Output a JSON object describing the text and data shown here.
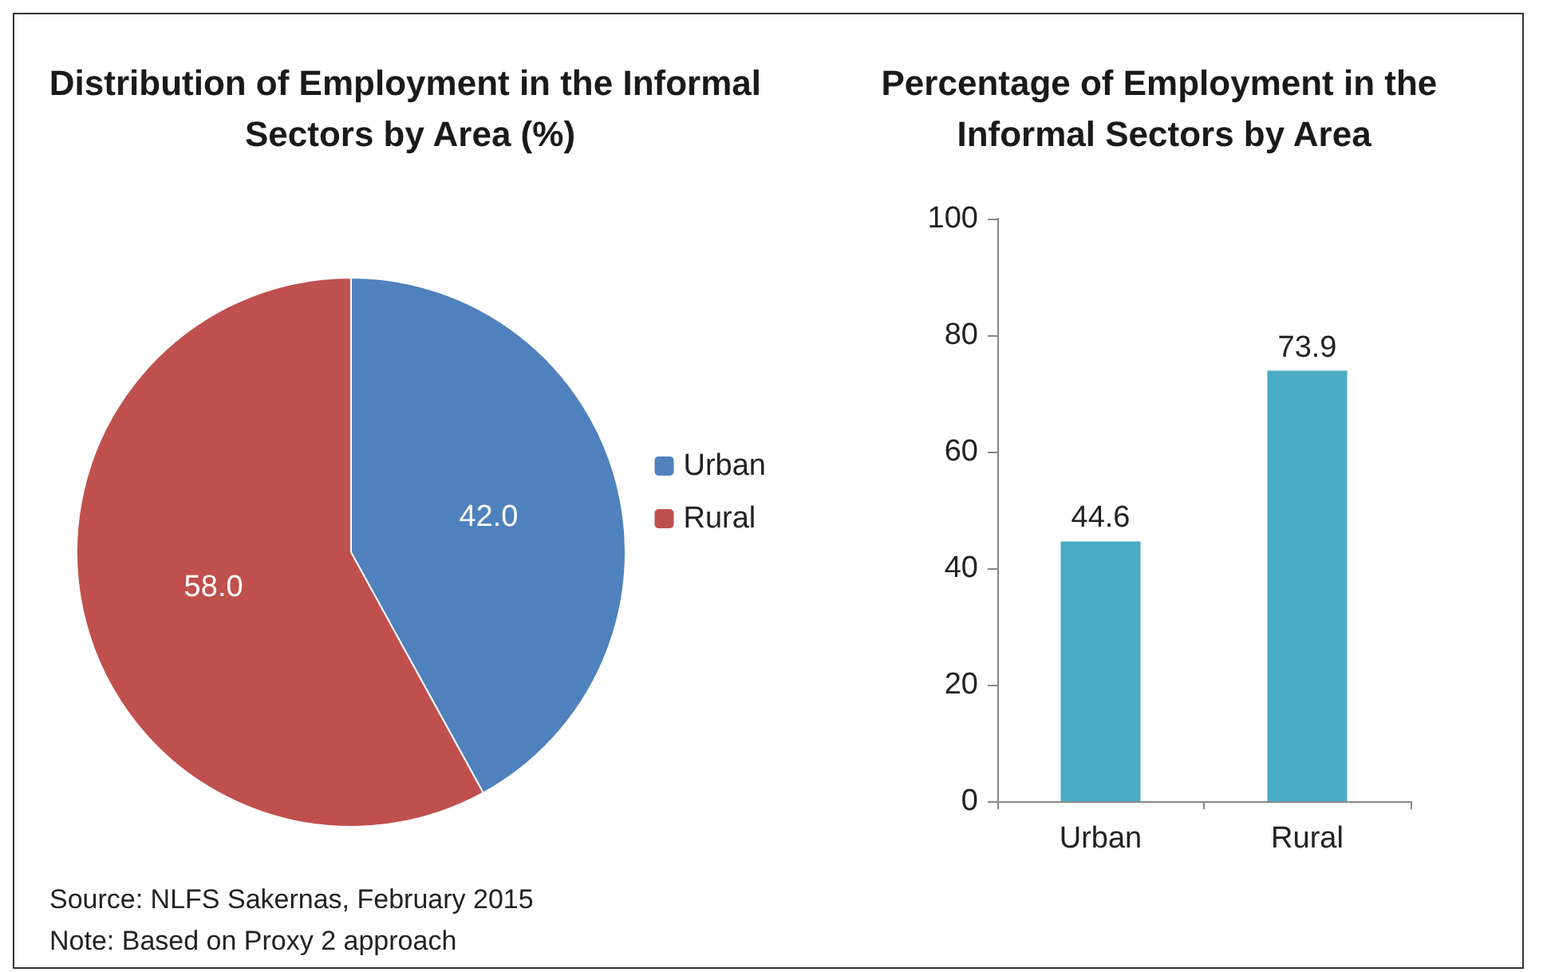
{
  "chart_data": [
    {
      "type": "pie",
      "title": "Distribution of Employment in the Informal Sectors by Area (%)",
      "categories": [
        "Urban",
        "Rural"
      ],
      "values": [
        42.0,
        58.0
      ],
      "colors": [
        "#4f81bd",
        "#c0504d"
      ],
      "value_labels": [
        "42.0",
        "58.0"
      ],
      "legend": "right",
      "annotations": [
        "Source: NLFS Sakernas, February 2015",
        "Note: Based on Proxy 2 approach"
      ]
    },
    {
      "type": "bar",
      "title": "Percentage of Employment in the Informal Sectors by Area",
      "categories": [
        "Urban",
        "Rural"
      ],
      "values": [
        44.6,
        73.9
      ],
      "color": "#4bacc6",
      "ylim": [
        0,
        100
      ],
      "yticks": [
        0,
        20,
        40,
        60,
        80,
        100
      ],
      "data_labels": true
    }
  ]
}
